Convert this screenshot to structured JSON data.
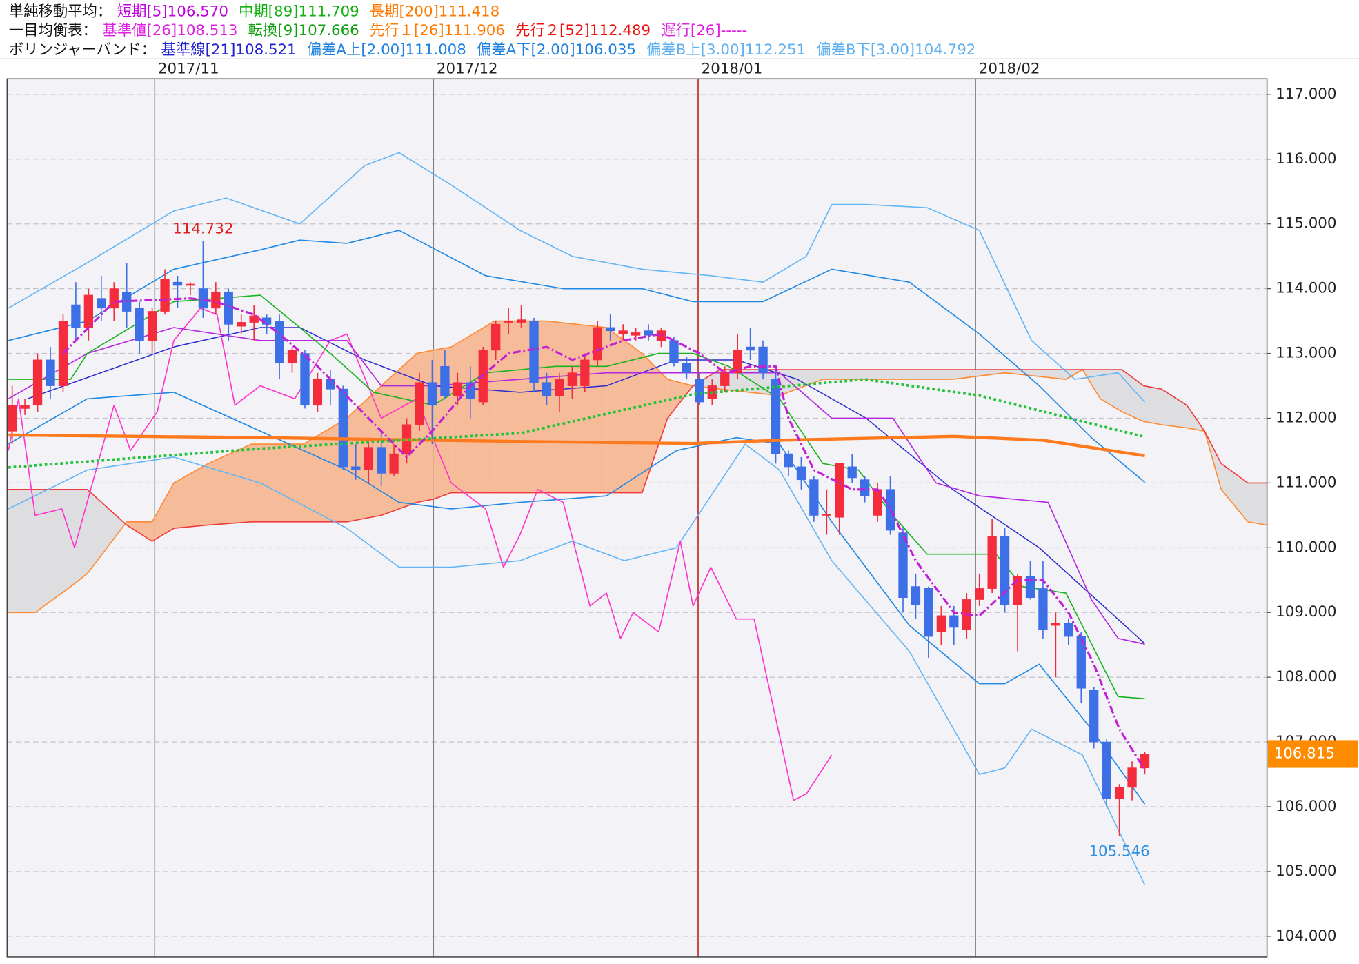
{
  "chart_data": {
    "type": "candlestick",
    "legend_rows": [
      {
        "label": "単純移動平均：",
        "items": [
          {
            "text": "短期[5]106.570",
            "color": "#c000e0"
          },
          {
            "text": "中期[89]111.709",
            "color": "#10b010"
          },
          {
            "text": "長期[200]111.418",
            "color": "#ff7a00"
          }
        ]
      },
      {
        "label": "一目均衡表：",
        "items": [
          {
            "text": "基準値[26]108.513",
            "color": "#e020e0"
          },
          {
            "text": "転換[9]107.666",
            "color": "#10a010"
          },
          {
            "text": "先行１[26]111.906",
            "color": "#ff7a00"
          },
          {
            "text": "先行２[52]112.489",
            "color": "#f01010"
          },
          {
            "text": "遅行[26]-----",
            "color": "#e020e0"
          }
        ]
      },
      {
        "label": "ボリンジャーバンド：",
        "items": [
          {
            "text": "基準線[21]108.521",
            "color": "#2020d0"
          },
          {
            "text": "偏差A上[2.00]111.008",
            "color": "#1e80e0"
          },
          {
            "text": "偏差A下[2.00]106.035",
            "color": "#1e80e0"
          },
          {
            "text": "偏差B上[3.00]112.251",
            "color": "#60b0f0"
          },
          {
            "text": "偏差B下[3.00]104.792",
            "color": "#60b0f0"
          }
        ]
      }
    ],
    "xlim": [
      -0.4,
      98.6
    ],
    "xticks": [
      {
        "value": 11.2,
        "label": "2017/11"
      },
      {
        "value": 33.1,
        "label": "2017/12"
      },
      {
        "value": 53.9,
        "label": "2018/01",
        "color": "#c01010"
      },
      {
        "value": 75.7,
        "label": "2018/02"
      }
    ],
    "ylim": [
      103.68,
      117.24
    ],
    "yticks": [
      {
        "value": 104,
        "label": "104.000"
      },
      {
        "value": 105,
        "label": "105.000"
      },
      {
        "value": 106,
        "label": "106.000"
      },
      {
        "value": 107,
        "label": "107.000"
      },
      {
        "value": 108,
        "label": "108.000"
      },
      {
        "value": 109,
        "label": "109.000"
      },
      {
        "value": 110,
        "label": "110.000"
      },
      {
        "value": 111,
        "label": "111.000"
      },
      {
        "value": 112,
        "label": "112.000"
      },
      {
        "value": 113,
        "label": "113.000"
      },
      {
        "value": 114,
        "label": "114.000"
      },
      {
        "value": 115,
        "label": "115.000"
      },
      {
        "value": 116,
        "label": "116.000"
      },
      {
        "value": 117,
        "label": "117.000"
      }
    ],
    "grid": true,
    "candles": {
      "up_color": "#f52c3c",
      "down_color": "#3d6fe6",
      "open": [
        111.8,
        112.15,
        112.2,
        112.9,
        112.5,
        113.75,
        113.4,
        113.85,
        113.7,
        113.95,
        113.7,
        113.2,
        113.65,
        114.1,
        114.05,
        114.0,
        113.7,
        113.95,
        113.42,
        113.48,
        113.55,
        113.5,
        112.85,
        113.0,
        112.2,
        112.6,
        112.45,
        111.25,
        111.2,
        111.55,
        111.15,
        111.45,
        111.9,
        112.55,
        112.8,
        112.35,
        112.55,
        112.25,
        113.05,
        113.48,
        113.48,
        113.5,
        112.55,
        112.35,
        112.5,
        112.5,
        112.9,
        113.4,
        113.3,
        113.28,
        113.35,
        113.2,
        113.2,
        112.85,
        112.6,
        112.3,
        112.5,
        112.7,
        113.1,
        113.1,
        112.6,
        111.45,
        111.25,
        111.05,
        110.5,
        110.47,
        111.25,
        111.05,
        110.5,
        110.9,
        110.23,
        109.4,
        109.38,
        108.7,
        108.95,
        108.74,
        109.2,
        109.37,
        110.17,
        109.12,
        109.56,
        109.37,
        108.8,
        108.83,
        108.63,
        107.8,
        107.0,
        106.13,
        106.3,
        106.6
      ],
      "high": [
        112.5,
        112.3,
        113.0,
        113.1,
        113.6,
        114.1,
        114.0,
        114.2,
        114.1,
        114.4,
        113.8,
        113.7,
        114.3,
        114.2,
        114.1,
        114.732,
        114.1,
        114.0,
        113.6,
        113.75,
        113.6,
        113.6,
        113.1,
        113.05,
        112.7,
        112.75,
        112.5,
        111.6,
        111.7,
        111.8,
        111.6,
        112.0,
        112.7,
        112.9,
        113.05,
        112.7,
        112.8,
        113.1,
        113.5,
        113.7,
        113.75,
        113.55,
        112.7,
        112.7,
        112.8,
        113.0,
        113.5,
        113.6,
        113.45,
        113.4,
        113.45,
        113.4,
        113.25,
        112.95,
        112.7,
        112.6,
        112.8,
        113.3,
        113.4,
        113.2,
        112.8,
        111.5,
        111.4,
        111.1,
        110.9,
        111.3,
        111.45,
        111.1,
        111.0,
        111.1,
        110.3,
        109.6,
        109.4,
        109.1,
        109.1,
        109.3,
        109.6,
        110.45,
        110.3,
        109.6,
        109.8,
        109.8,
        109.0,
        108.9,
        108.7,
        107.85,
        107.05,
        106.35,
        106.7,
        106.85
      ],
      "low": [
        111.6,
        112.05,
        112.1,
        112.3,
        112.4,
        113.2,
        113.2,
        113.5,
        113.5,
        113.4,
        113.0,
        113.0,
        113.6,
        113.7,
        113.9,
        113.55,
        113.6,
        113.2,
        113.3,
        113.2,
        113.3,
        112.6,
        112.7,
        112.15,
        112.1,
        112.2,
        111.2,
        111.05,
        111.0,
        110.95,
        111.1,
        111.3,
        111.8,
        111.6,
        112.3,
        112.2,
        112.0,
        112.2,
        112.9,
        113.3,
        113.4,
        112.4,
        112.2,
        112.1,
        112.3,
        112.4,
        112.8,
        113.2,
        113.2,
        113.2,
        113.2,
        113.1,
        112.8,
        112.6,
        112.2,
        112.2,
        112.4,
        112.6,
        112.9,
        112.6,
        111.3,
        111.1,
        110.9,
        110.4,
        110.2,
        110.2,
        111.0,
        110.7,
        110.4,
        110.2,
        109.0,
        108.9,
        108.3,
        108.5,
        108.5,
        108.6,
        109.1,
        109.3,
        109.0,
        108.4,
        109.2,
        108.6,
        108.0,
        108.5,
        107.6,
        106.9,
        106.0,
        105.546,
        106.1,
        106.5
      ],
      "close": [
        112.2,
        112.2,
        112.9,
        112.5,
        113.5,
        113.4,
        113.9,
        113.7,
        114.0,
        113.65,
        113.2,
        113.65,
        114.15,
        114.05,
        114.07,
        113.7,
        113.95,
        113.45,
        113.48,
        113.58,
        113.45,
        112.85,
        113.05,
        112.2,
        112.6,
        112.45,
        111.25,
        111.2,
        111.55,
        111.15,
        111.45,
        111.9,
        112.55,
        112.2,
        112.35,
        112.55,
        112.3,
        113.05,
        113.45,
        113.5,
        113.52,
        112.55,
        112.35,
        112.6,
        112.7,
        112.9,
        113.4,
        113.35,
        113.35,
        113.32,
        113.28,
        113.35,
        112.85,
        112.7,
        112.25,
        112.5,
        112.7,
        113.05,
        113.05,
        112.7,
        111.45,
        111.25,
        111.05,
        110.5,
        110.52,
        111.3,
        111.08,
        110.8,
        110.9,
        110.27,
        109.23,
        109.12,
        108.63,
        108.95,
        108.77,
        109.2,
        109.37,
        110.17,
        109.12,
        109.56,
        109.23,
        108.73,
        108.83,
        108.63,
        107.83,
        107.0,
        106.13,
        106.3,
        106.6,
        106.815
      ]
    },
    "cloud": {
      "color_a": "#ff8a33",
      "color_b": "#f03a3a",
      "fill_up": "#f6b690",
      "fill_down": "#dcdcdf",
      "x": [
        -0.3,
        1.8,
        4.6,
        5.9,
        9.0,
        11.0,
        12.7,
        15.4,
        18.8,
        22.9,
        26.3,
        29.0,
        31.8,
        33.1,
        34.5,
        37.9,
        42.0,
        46.7,
        49.5,
        51.5,
        53.5,
        55.6,
        60.3,
        63.7,
        67.1,
        73.9,
        78.0,
        82.8,
        84.1,
        85.5,
        87.2,
        88.9,
        90.3,
        92.3,
        93.7,
        95.0,
        97.1,
        98.6
      ],
      "span_a": [
        109.0,
        109.0,
        109.4,
        109.6,
        110.4,
        110.4,
        111.0,
        111.3,
        111.6,
        111.6,
        112.0,
        112.5,
        113.0,
        113.05,
        113.1,
        113.5,
        113.5,
        113.4,
        113.0,
        112.6,
        112.5,
        112.45,
        112.35,
        112.6,
        112.6,
        112.6,
        112.7,
        112.6,
        112.75,
        112.3,
        112.1,
        111.95,
        111.9,
        111.85,
        111.8,
        110.9,
        110.4,
        110.35
      ],
      "span_b": [
        110.9,
        110.9,
        110.9,
        110.9,
        110.35,
        110.1,
        110.3,
        110.35,
        110.4,
        110.4,
        110.4,
        110.5,
        110.7,
        110.75,
        110.85,
        110.85,
        110.85,
        110.85,
        110.85,
        112.0,
        112.5,
        112.75,
        112.75,
        112.75,
        112.75,
        112.75,
        112.75,
        112.75,
        112.75,
        112.75,
        112.75,
        112.5,
        112.45,
        112.2,
        111.8,
        111.3,
        111.0,
        111.0
      ]
    },
    "lines": [
      {
        "color": "#64b5f6",
        "style": "solid",
        "width": 1.3,
        "x": [
          -0.3,
          5.9,
          12.7,
          16.8,
          22.6,
          27.7,
          30.4,
          34.5,
          39.9,
          44.0,
          49.5,
          54.9,
          59.0,
          62.4,
          64.4,
          67.1,
          71.9,
          76.0,
          80.1,
          83.5,
          86.9,
          89
        ],
        "values": [
          113.7,
          114.4,
          115.2,
          115.4,
          115.0,
          115.9,
          116.1,
          115.6,
          114.9,
          114.5,
          114.3,
          114.2,
          114.1,
          114.5,
          115.3,
          115.3,
          115.25,
          114.9,
          113.2,
          112.6,
          112.7,
          112.25
        ]
      },
      {
        "color": "#64b5f6",
        "style": "solid",
        "width": 1.3,
        "x": [
          -0.3,
          5.9,
          12.7,
          19.5,
          26.3,
          30.4,
          34.5,
          39.9,
          44.0,
          48.1,
          52.2,
          57.6,
          60.3,
          64.4,
          70.5,
          76.0,
          78.0,
          80.1,
          84.1,
          89
        ],
        "values": [
          110.6,
          111.2,
          111.4,
          111.0,
          110.3,
          109.7,
          109.7,
          109.8,
          110.1,
          109.8,
          110.0,
          111.6,
          111.2,
          109.8,
          108.4,
          106.5,
          106.6,
          107.2,
          106.8,
          104.79
        ]
      },
      {
        "color": "#1e88e5",
        "style": "solid",
        "width": 1.3,
        "x": [
          -0.3,
          5.9,
          12.7,
          19.5,
          22.6,
          26.3,
          30.4,
          37.2,
          43.3,
          49.5,
          53.5,
          59.0,
          64.4,
          70.5,
          76.0,
          80.7,
          84.8,
          89
        ],
        "values": [
          113.2,
          113.5,
          114.3,
          114.6,
          114.75,
          114.7,
          114.9,
          114.2,
          114.0,
          114.0,
          113.8,
          113.8,
          114.3,
          114.1,
          113.3,
          112.5,
          111.7,
          111.01
        ]
      },
      {
        "color": "#1e88e5",
        "style": "solid",
        "width": 1.3,
        "x": [
          -0.3,
          5.9,
          12.7,
          19.5,
          26.3,
          30.4,
          34.5,
          39.9,
          46.7,
          52.2,
          56.9,
          60.3,
          64.4,
          70.5,
          76.0,
          78.0,
          80.7,
          84.8,
          89
        ],
        "values": [
          111.6,
          112.3,
          112.4,
          111.8,
          111.2,
          110.7,
          110.6,
          110.7,
          110.8,
          111.5,
          111.7,
          111.6,
          110.4,
          108.8,
          107.9,
          107.9,
          108.2,
          107.2,
          106.04
        ]
      },
      {
        "color": "#2b2bd0",
        "style": "solid",
        "width": 1.2,
        "x": [
          1.2,
          12.7,
          19.5,
          22.6,
          27.7,
          33.1,
          39.9,
          46.7,
          52.2,
          56.9,
          61.7,
          67.1,
          73.9,
          80.7,
          89
        ],
        "values": [
          112.3,
          113.1,
          113.4,
          113.4,
          112.9,
          112.5,
          112.4,
          112.5,
          112.9,
          112.9,
          112.6,
          112.0,
          110.9,
          110.0,
          108.52
        ]
      },
      {
        "color": "#ff33cc",
        "style": "solid",
        "width": 1.3,
        "x": [
          -0.3,
          0.5,
          1.8,
          3.9,
          4.9,
          8.0,
          9.3,
          11.4,
          12.7,
          14.8,
          16.1,
          17.5,
          19.5,
          22.2,
          25.0,
          26.3,
          29.0,
          31.8,
          34.5,
          37.2,
          38.6,
          39.9,
          41.3,
          43.3,
          45.4,
          46.7,
          47.8,
          48.8,
          50.8,
          52.5,
          53.5,
          54.9,
          56.9,
          58.3,
          61.4,
          62.4,
          64.4
        ],
        "values": [
          111.5,
          112.3,
          110.5,
          110.6,
          110.0,
          112.2,
          111.5,
          112.1,
          113.2,
          113.7,
          113.6,
          112.2,
          112.5,
          112.3,
          113.2,
          113.3,
          112.0,
          112.3,
          111.0,
          110.6,
          109.7,
          110.2,
          110.9,
          110.7,
          109.1,
          109.3,
          108.6,
          109.0,
          108.7,
          110.1,
          109.1,
          109.7,
          108.9,
          108.9,
          106.1,
          106.2,
          106.8
        ]
      },
      {
        "color": "#b526e0",
        "style": "solid",
        "width": 1.3,
        "x": [
          -0.3,
          5.9,
          12.7,
          19.5,
          26.3,
          29.0,
          33.1,
          39.9,
          46.7,
          53.5,
          60.3,
          64.4,
          69.2,
          72.6,
          76.0,
          81.4,
          84.8,
          86.9,
          89
        ],
        "values": [
          112.3,
          113.0,
          113.4,
          113.2,
          113.2,
          112.5,
          112.5,
          112.6,
          112.7,
          112.7,
          112.7,
          112.0,
          112.0,
          111.0,
          110.8,
          110.7,
          109.2,
          108.6,
          108.51
        ]
      },
      {
        "color": "#19b31e",
        "style": "solid",
        "width": 1.3,
        "x": [
          -0.3,
          4.6,
          5.9,
          12.7,
          19.5,
          22.6,
          25.0,
          28.4,
          33.1,
          37.2,
          42.7,
          46.7,
          50.8,
          53.5,
          56.3,
          60.3,
          63.7,
          66.5,
          69.2,
          71.9,
          77.3,
          79.4,
          82.8,
          86.9,
          89
        ],
        "values": [
          112.6,
          112.6,
          113.0,
          113.8,
          113.9,
          113.4,
          113.0,
          112.4,
          112.2,
          112.7,
          112.8,
          112.8,
          113.0,
          113.0,
          112.8,
          112.3,
          111.3,
          111.2,
          110.5,
          109.9,
          109.9,
          109.4,
          109.3,
          107.7,
          107.67
        ]
      },
      {
        "color": "#ff7a1f",
        "style": "solid",
        "width": 3.5,
        "x": [
          -0.3,
          19.5,
          40,
          53.5,
          60.3,
          74,
          81,
          89
        ],
        "values": [
          111.74,
          111.7,
          111.64,
          111.61,
          111.66,
          111.72,
          111.66,
          111.42
        ]
      },
      {
        "color": "#22c33a",
        "style": "dotted",
        "width": 3,
        "x": [
          -0.3,
          19.5,
          40,
          53.5,
          67,
          76,
          89
        ],
        "values": [
          111.24,
          111.53,
          111.77,
          112.37,
          112.6,
          112.35,
          111.71
        ]
      },
      {
        "color": "#c21fd6",
        "style": "dashdot",
        "width": 2.5,
        "x": [
          4,
          8,
          14,
          16,
          19,
          21,
          24,
          27,
          30,
          31,
          33,
          36,
          39,
          42,
          44,
          48,
          51,
          54,
          56,
          58,
          60,
          61,
          63,
          66,
          68,
          69,
          71,
          74,
          76,
          79,
          81,
          83,
          85,
          87,
          89
        ],
        "values": [
          113.0,
          113.8,
          113.85,
          113.8,
          113.6,
          113.3,
          112.8,
          112.2,
          111.6,
          111.4,
          111.8,
          112.5,
          113.0,
          113.1,
          112.9,
          113.2,
          113.3,
          113.0,
          112.7,
          112.8,
          112.8,
          112.0,
          111.2,
          110.9,
          110.9,
          110.6,
          109.8,
          109.0,
          108.95,
          109.5,
          109.5,
          109.0,
          108.2,
          107.2,
          106.57
        ]
      }
    ],
    "annotations": [
      {
        "text": "114.732",
        "value": 114.732,
        "at": "high",
        "color": "#e02020"
      },
      {
        "text": "105.546",
        "value": 105.546,
        "at": "low",
        "color": "#3090e0"
      }
    ],
    "last_price": {
      "value": 106.815,
      "label": "106.815",
      "color": "#ff8c00"
    }
  }
}
